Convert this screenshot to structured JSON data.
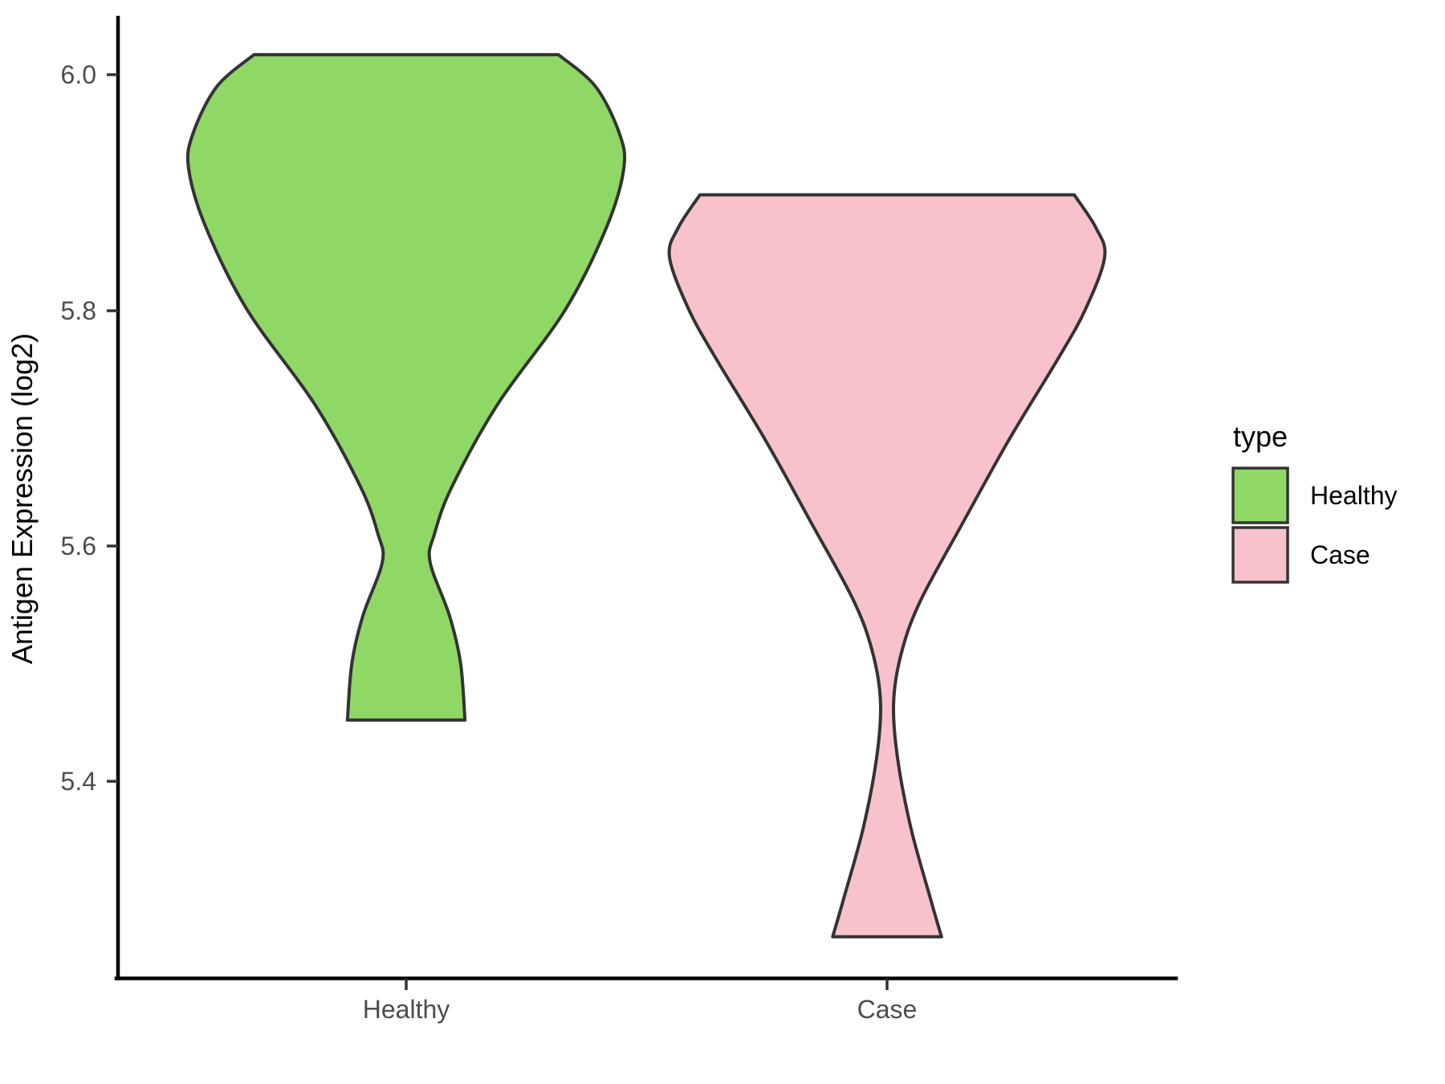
{
  "y_axis": {
    "title": "Antigen Expression (log2)",
    "ticks": [
      {
        "label": "6.0",
        "value": 6.0
      },
      {
        "label": "5.8",
        "value": 5.8
      },
      {
        "label": "5.6",
        "value": 5.6
      },
      {
        "label": "5.4",
        "value": 5.4
      }
    ]
  },
  "x_axis": {
    "ticks": [
      {
        "label": "Healthy"
      },
      {
        "label": "Case"
      }
    ]
  },
  "legend": {
    "title": "type",
    "entries": [
      {
        "label": "Healthy",
        "color": "#90D865"
      },
      {
        "label": "Case",
        "color": "#F8C2CD"
      }
    ]
  },
  "style": {
    "outline_color": "#333333",
    "axis_color": "#000000",
    "tick_text_color": "#4D4D4D",
    "background": "#FFFFFF"
  },
  "chart_data": {
    "type": "violin",
    "title": "",
    "xlabel": "",
    "ylabel": "Antigen Expression (log2)",
    "categories": [
      "Healthy",
      "Case"
    ],
    "y_ticks": [
      5.4,
      5.6,
      5.8,
      6.0
    ],
    "ylim": [
      5.22,
      6.05
    ],
    "grid": false,
    "legend_position": "right",
    "series": [
      {
        "name": "Healthy",
        "color": "#90D865",
        "data_range": [
          5.452,
          6.017
        ],
        "trim": true,
        "profile": [
          [
            6.017,
            0.7
          ],
          [
            5.99,
            0.87
          ],
          [
            5.95,
            0.98
          ],
          [
            5.92,
            1.0
          ],
          [
            5.87,
            0.92
          ],
          [
            5.8,
            0.73
          ],
          [
            5.72,
            0.42
          ],
          [
            5.65,
            0.21
          ],
          [
            5.61,
            0.13
          ],
          [
            5.586,
            0.11
          ],
          [
            5.54,
            0.2
          ],
          [
            5.5,
            0.25
          ],
          [
            5.452,
            0.27
          ]
        ]
      },
      {
        "name": "Case",
        "color": "#F8C2CD",
        "data_range": [
          5.268,
          5.898
        ],
        "trim": true,
        "profile": [
          [
            5.898,
            0.86
          ],
          [
            5.87,
            0.96
          ],
          [
            5.845,
            1.0
          ],
          [
            5.8,
            0.91
          ],
          [
            5.757,
            0.78
          ],
          [
            5.69,
            0.56
          ],
          [
            5.62,
            0.35
          ],
          [
            5.552,
            0.15
          ],
          [
            5.507,
            0.063
          ],
          [
            5.466,
            0.03
          ],
          [
            5.42,
            0.048
          ],
          [
            5.36,
            0.11
          ],
          [
            5.3,
            0.2
          ],
          [
            5.268,
            0.25
          ]
        ]
      }
    ]
  }
}
